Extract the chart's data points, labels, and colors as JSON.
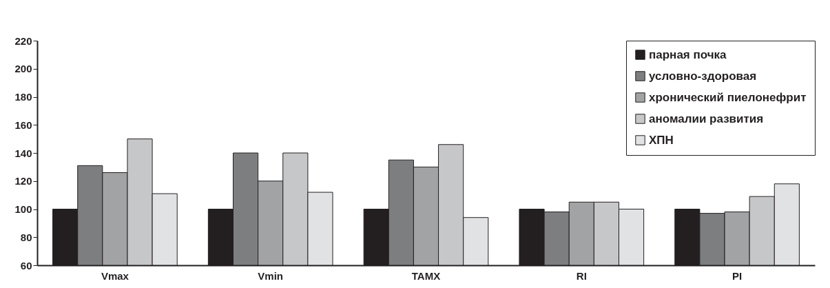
{
  "chart_data": {
    "type": "bar",
    "categories": [
      "Vmax",
      "Vmin",
      "TAMX",
      "RI",
      "PI"
    ],
    "series": [
      {
        "name": "парная почка",
        "color": "#231f20",
        "values": [
          100,
          100,
          100,
          100,
          100
        ]
      },
      {
        "name": "условно-здоровая",
        "color": "#7d7e80",
        "values": [
          131,
          140,
          135,
          98,
          97
        ]
      },
      {
        "name": "хронический пиелонефрит",
        "color": "#a2a3a5",
        "values": [
          126,
          120,
          130,
          105,
          98
        ]
      },
      {
        "name": "аномалии развития",
        "color": "#c6c7c9",
        "values": [
          150,
          140,
          146,
          105,
          109
        ]
      },
      {
        "name": "ХПН",
        "color": "#e1e2e4",
        "values": [
          111,
          112,
          94,
          100,
          118
        ]
      }
    ],
    "ylim": [
      60,
      220
    ],
    "yticks": [
      60,
      80,
      100,
      120,
      140,
      160,
      180,
      200,
      220
    ],
    "grid": false,
    "legend": "top right"
  }
}
